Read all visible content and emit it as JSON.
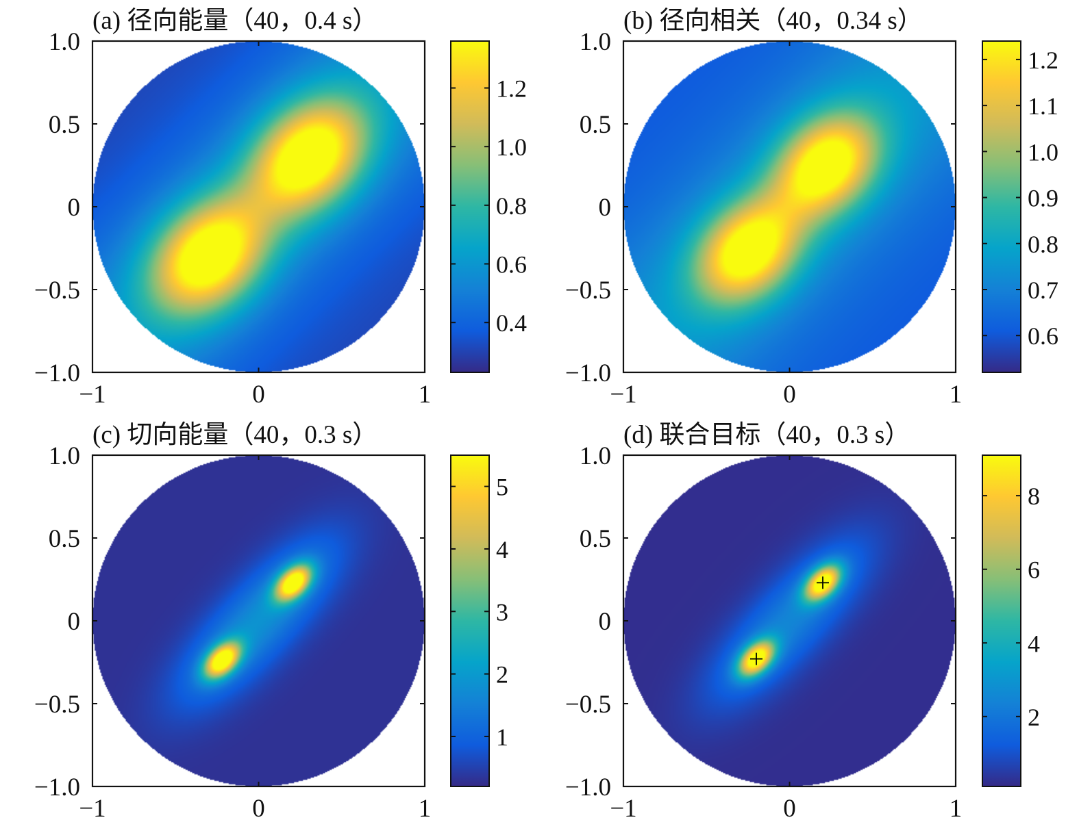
{
  "figure": {
    "colormap": [
      "#352a87",
      "#0f5cdd",
      "#1481d6",
      "#06a4ca",
      "#2eb7a4",
      "#87bf77",
      "#d1bb59",
      "#fec832",
      "#f9fb0e"
    ]
  },
  "chart_data": [
    {
      "type": "heatmap",
      "title": "(a) 径向能量（40，0.4 s）",
      "xlabel": "",
      "ylabel": "",
      "xlim": [
        -1,
        1
      ],
      "ylim": [
        -1,
        1
      ],
      "x_ticks": [
        "−1",
        "0",
        "1"
      ],
      "y_ticks": [
        "1.0",
        "0.5",
        "0",
        "−0.5",
        "−1.0"
      ],
      "domain": "unit disk",
      "grid": false,
      "colorbar": {
        "range": [
          0.23,
          1.36
        ],
        "ticks": [
          "0.4",
          "0.6",
          "0.8",
          "1.0",
          "1.2"
        ],
        "tick_values": [
          0.4,
          0.6,
          0.8,
          1.0,
          1.2
        ]
      },
      "field": {
        "base": 0.3,
        "tilt": 0.28,
        "tilt_axis": [
          1,
          1
        ],
        "peaks": [
          {
            "x": 0.3,
            "y": 0.3,
            "amp": 1.0,
            "sigma_along": 0.27,
            "sigma_across": 0.2
          },
          {
            "x": -0.3,
            "y": -0.3,
            "amp": 1.0,
            "sigma_along": 0.27,
            "sigma_across": 0.2
          }
        ]
      },
      "markers": []
    },
    {
      "type": "heatmap",
      "title": "(b) 径向相关（40，0.34 s）",
      "xlabel": "",
      "ylabel": "",
      "xlim": [
        -1,
        1
      ],
      "ylim": [
        -1,
        1
      ],
      "x_ticks": [
        "−1",
        "0",
        "1"
      ],
      "y_ticks": [
        "1.0",
        "0.5",
        "0",
        "−0.5",
        "−1.0"
      ],
      "domain": "unit disk",
      "grid": false,
      "colorbar": {
        "range": [
          0.52,
          1.24
        ],
        "ticks": [
          "0.6",
          "0.7",
          "0.8",
          "0.9",
          "1.0",
          "1.1",
          "1.2"
        ],
        "tick_values": [
          0.6,
          0.7,
          0.8,
          0.9,
          1.0,
          1.1,
          1.2
        ]
      },
      "field": {
        "base": 0.6,
        "tilt": 0.16,
        "tilt_axis": [
          1,
          1
        ],
        "peaks": [
          {
            "x": 0.22,
            "y": 0.25,
            "amp": 0.6,
            "sigma_along": 0.24,
            "sigma_across": 0.18
          },
          {
            "x": -0.25,
            "y": -0.27,
            "amp": 0.6,
            "sigma_along": 0.24,
            "sigma_across": 0.18
          }
        ]
      },
      "markers": []
    },
    {
      "type": "heatmap",
      "title": "(c) 切向能量（40，0.3 s）",
      "xlabel": "",
      "ylabel": "",
      "xlim": [
        -1,
        1
      ],
      "ylim": [
        -1,
        1
      ],
      "x_ticks": [
        "−1",
        "0",
        "1"
      ],
      "y_ticks": [
        "1.0",
        "0.5",
        "0",
        "−0.5",
        "−1.0"
      ],
      "domain": "unit disk",
      "grid": false,
      "colorbar": {
        "range": [
          0.2,
          5.5
        ],
        "ticks": [
          "1",
          "2",
          "3",
          "4",
          "5"
        ],
        "tick_values": [
          1,
          2,
          3,
          4,
          5
        ]
      },
      "field": {
        "base": 0.3,
        "tilt": 0.0,
        "tilt_axis": [
          1,
          1
        ],
        "peaks": [
          {
            "x": 0.21,
            "y": 0.23,
            "amp": 5.2,
            "sigma_along": 0.09,
            "sigma_across": 0.055
          },
          {
            "x": -0.22,
            "y": -0.24,
            "amp": 5.2,
            "sigma_along": 0.09,
            "sigma_across": 0.055
          },
          {
            "x": 0.18,
            "y": 0.2,
            "amp": 1.1,
            "sigma_along": 0.32,
            "sigma_across": 0.15
          },
          {
            "x": -0.18,
            "y": -0.2,
            "amp": 1.1,
            "sigma_along": 0.32,
            "sigma_across": 0.15
          }
        ]
      },
      "markers": []
    },
    {
      "type": "heatmap",
      "title": "(d) 联合目标（40，0.3 s）",
      "xlabel": "",
      "ylabel": "",
      "xlim": [
        -1,
        1
      ],
      "ylim": [
        -1,
        1
      ],
      "x_ticks": [
        "−1",
        "0",
        "1"
      ],
      "y_ticks": [
        "1.0",
        "0.5",
        "0",
        "−0.5",
        "−1.0"
      ],
      "domain": "unit disk",
      "grid": false,
      "colorbar": {
        "range": [
          0.1,
          9.1
        ],
        "ticks": [
          "2",
          "4",
          "6",
          "8"
        ],
        "tick_values": [
          2,
          4,
          6,
          8
        ]
      },
      "field": {
        "base": 0.2,
        "tilt": 0.0,
        "tilt_axis": [
          1,
          1
        ],
        "peaks": [
          {
            "x": 0.2,
            "y": 0.23,
            "amp": 8.6,
            "sigma_along": 0.09,
            "sigma_across": 0.055
          },
          {
            "x": -0.2,
            "y": -0.23,
            "amp": 8.6,
            "sigma_along": 0.09,
            "sigma_across": 0.055
          },
          {
            "x": 0.18,
            "y": 0.2,
            "amp": 1.6,
            "sigma_along": 0.32,
            "sigma_across": 0.15
          },
          {
            "x": -0.18,
            "y": -0.2,
            "amp": 1.6,
            "sigma_along": 0.32,
            "sigma_across": 0.15
          }
        ]
      },
      "markers": [
        {
          "x": 0.2,
          "y": 0.23,
          "symbol": "+"
        },
        {
          "x": -0.2,
          "y": -0.23,
          "symbol": "+"
        }
      ]
    }
  ]
}
